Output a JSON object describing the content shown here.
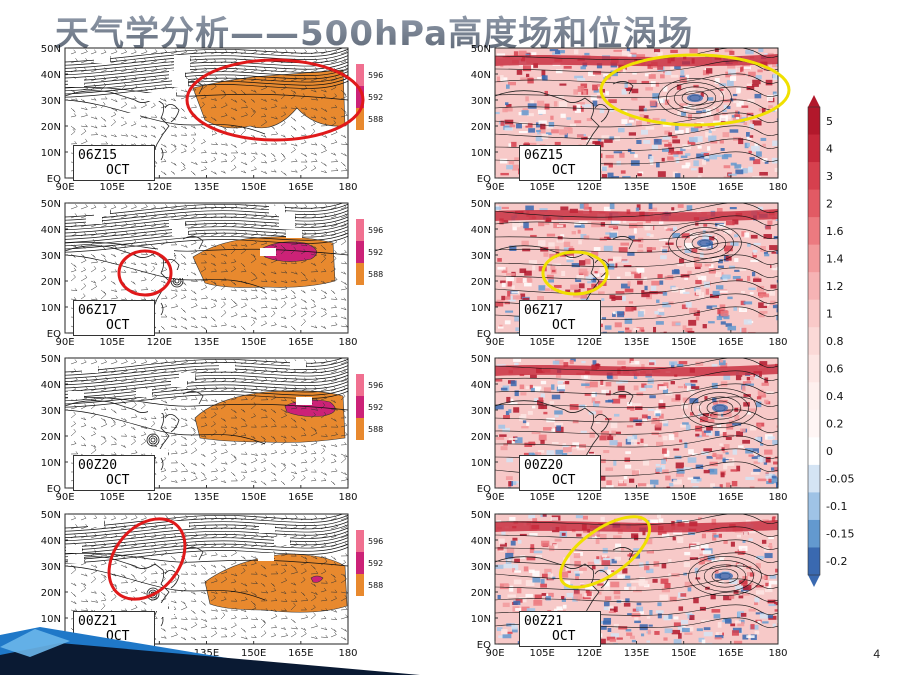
{
  "slide": {
    "title": "天气学分析——500hPa高度场和位涡场",
    "page_number": "4"
  },
  "axes": {
    "lat_labels": [
      "50N",
      "40N",
      "30N",
      "20N",
      "10N",
      "EQ"
    ],
    "lon_labels": [
      "90E",
      "105E",
      "120E",
      "135E",
      "150E",
      "165E",
      "180"
    ]
  },
  "panels": [
    {
      "time": "06Z15",
      "month": "OCT"
    },
    {
      "time": "06Z17",
      "month": "OCT"
    },
    {
      "time": "00Z20",
      "month": "OCT"
    },
    {
      "time": "00Z21",
      "month": "OCT"
    }
  ],
  "height_legend": [
    "596",
    "592",
    "588"
  ],
  "pv_colorbar": {
    "labels": [
      "5",
      "4",
      "3",
      "2",
      "1.6",
      "1.4",
      "1.2",
      "1",
      "0.8",
      "0.6",
      "0.4",
      "0.2",
      "0",
      "-0.05",
      "-0.1",
      "-0.15",
      "-0.2"
    ],
    "colors": [
      "#b2182b",
      "#c5283a",
      "#d6404e",
      "#e25a64",
      "#ec7a80",
      "#f29a9c",
      "#f6b3b4",
      "#f9c9c8",
      "#fbd9d7",
      "#fde6e4",
      "#fef0ee",
      "#fff6f5",
      "#ffffff",
      "#d4e4f4",
      "#9fc3e6",
      "#6399cf",
      "#3a69b0"
    ]
  },
  "colors": {
    "highlight_red": "#e0191a",
    "highlight_yellow": "#f0e000",
    "height_orange": "#e8892e",
    "height_magenta": "#cc2277",
    "height_pink": "#f07090"
  }
}
